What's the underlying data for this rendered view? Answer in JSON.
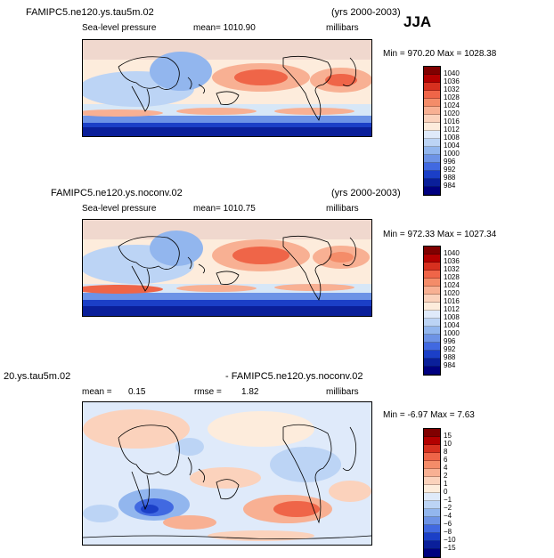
{
  "season": "JJA",
  "common": {
    "variable": "Sea-level pressure",
    "units": "millibars"
  },
  "panels": [
    {
      "case": "FAMIPC5.ne120.ys.tau5m.02",
      "years": "(yrs 2000-2003)",
      "mean": "mean= 1010.90",
      "minmax": "Min = 970.20  Max = 1028.38",
      "colorbar": [
        "1040",
        "1036",
        "1032",
        "1028",
        "1024",
        "1020",
        "1016",
        "1012",
        "1008",
        "1004",
        "1000",
        "996",
        "992",
        "988",
        "984"
      ]
    },
    {
      "case": "FAMIPC5.ne120.ys.noconv.02",
      "years": "(yrs 2000-2003)",
      "mean": "mean= 1010.75",
      "minmax": "Min = 972.33  Max = 1027.34",
      "colorbar": [
        "1040",
        "1036",
        "1032",
        "1028",
        "1024",
        "1020",
        "1016",
        "1012",
        "1008",
        "1004",
        "1000",
        "996",
        "992",
        "988",
        "984"
      ]
    },
    {
      "case_left": "20.ys.tau5m.02",
      "case_right": "- FAMIPC5.ne120.ys.noconv.02",
      "mean_label": "mean =",
      "mean_value": "0.15",
      "rmse_label": "rmse =",
      "rmse_value": "1.82",
      "minmax": "Min =  -6.97  Max =   7.63",
      "colorbar": [
        "15",
        "10",
        "8",
        "6",
        "4",
        "2",
        "1",
        "0",
        "−1",
        "−2",
        "−4",
        "−6",
        "−8",
        "−10",
        "−15"
      ]
    }
  ],
  "colors": {
    "abs_scale": [
      "#800000",
      "#b30000",
      "#d7301f",
      "#ef6548",
      "#f48c69",
      "#f8b093",
      "#fbd2bc",
      "#fdecdc",
      "#dfeafa",
      "#bcd4f5",
      "#92b6ee",
      "#6d93e6",
      "#4169e1",
      "#1b3fc7",
      "#0a1f9a",
      "#000080"
    ],
    "diff_scale": [
      "#800000",
      "#b30000",
      "#d7301f",
      "#ef6548",
      "#f48c69",
      "#f8b093",
      "#fbd2bc",
      "#fdecdc",
      "#dfeafa",
      "#bcd4f5",
      "#92b6ee",
      "#6d93e6",
      "#4169e1",
      "#1b3fc7",
      "#0a1f9a",
      "#000080"
    ]
  }
}
